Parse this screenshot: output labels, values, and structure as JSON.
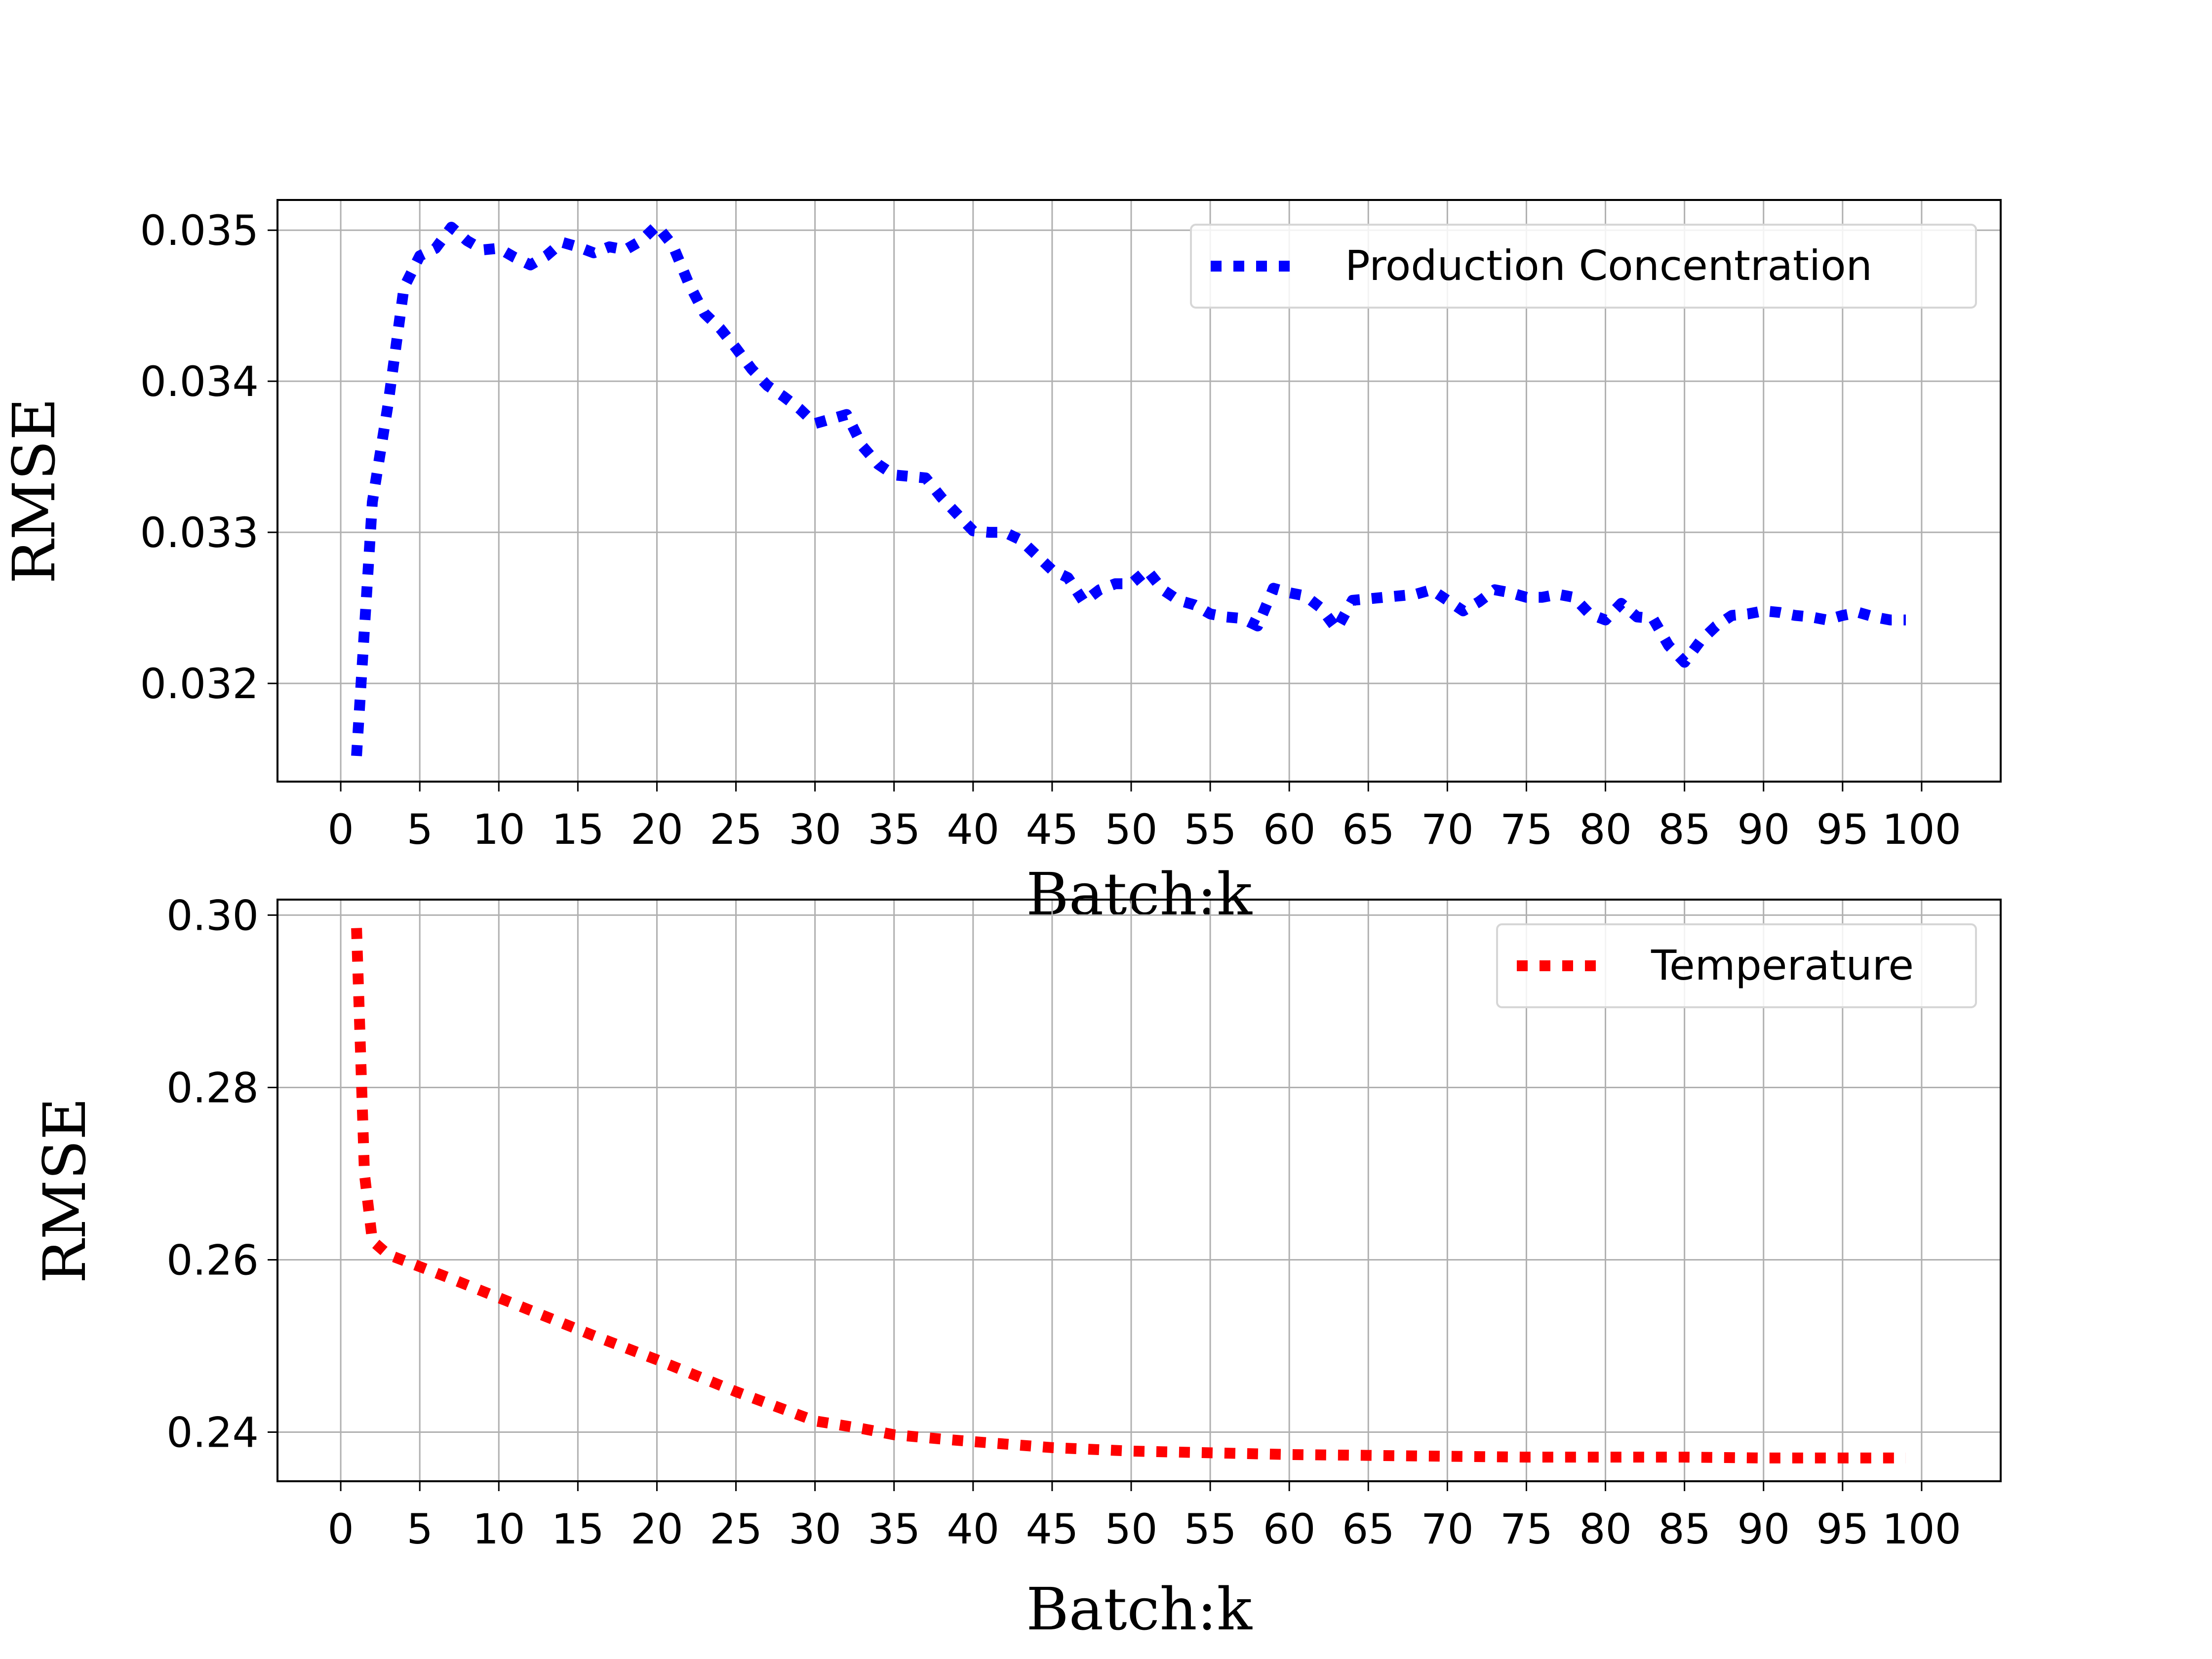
{
  "chart_data": [
    {
      "type": "line",
      "title": "",
      "xlabel": "Batch:k",
      "ylabel": "RMSE",
      "xlim": [
        -4,
        105
      ],
      "ylim": [
        0.03135,
        0.0352
      ],
      "xticks": [
        0,
        5,
        10,
        15,
        20,
        25,
        30,
        35,
        40,
        45,
        50,
        55,
        60,
        65,
        70,
        75,
        80,
        85,
        90,
        95,
        100
      ],
      "xtick_labels": [
        "0",
        "5",
        "10",
        "15",
        "20",
        "25",
        "30",
        "35",
        "40",
        "45",
        "50",
        "55",
        "60",
        "65",
        "70",
        "75",
        "80",
        "85",
        "90",
        "95",
        "100"
      ],
      "yticks": [
        0.032,
        0.033,
        0.034,
        0.035
      ],
      "ytick_labels": [
        "0.032",
        "0.033",
        "0.034",
        "0.035"
      ],
      "grid": true,
      "legend_position": "top-right",
      "series": [
        {
          "name": "Production Concentration",
          "color": "#0000ff",
          "linestyle": "dotted",
          "x": [
            1,
            2,
            3,
            4,
            5,
            6,
            7,
            8,
            9,
            10,
            11,
            12,
            13,
            14,
            15,
            16,
            17,
            18,
            19,
            20,
            21,
            22,
            23,
            24,
            25,
            26,
            27,
            28,
            29,
            30,
            31,
            32,
            33,
            34,
            35,
            36,
            37,
            38,
            39,
            40,
            41,
            42,
            43,
            44,
            45,
            46,
            47,
            48,
            49,
            50,
            51,
            52,
            53,
            54,
            55,
            56,
            57,
            58,
            59,
            60,
            61,
            62,
            63,
            64,
            65,
            66,
            67,
            68,
            69,
            70,
            71,
            72,
            73,
            74,
            75,
            76,
            77,
            78,
            79,
            80,
            81,
            82,
            83,
            84,
            85,
            86,
            87,
            88,
            89,
            90,
            91,
            92,
            93,
            94,
            95,
            96,
            97,
            98,
            99
          ],
          "y": [
            0.03152,
            0.0332,
            0.03385,
            0.03462,
            0.03483,
            0.03488,
            0.03502,
            0.03493,
            0.03487,
            0.03488,
            0.03482,
            0.03477,
            0.03483,
            0.03492,
            0.03489,
            0.03485,
            0.03489,
            0.03487,
            0.03493,
            0.03503,
            0.0349,
            0.03465,
            0.03445,
            0.03435,
            0.03422,
            0.03408,
            0.03397,
            0.0339,
            0.03382,
            0.03372,
            0.03375,
            0.03378,
            0.03357,
            0.03345,
            0.03338,
            0.03337,
            0.03336,
            0.03323,
            0.03312,
            0.03301,
            0.033,
            0.033,
            0.03295,
            0.03285,
            0.03275,
            0.0327,
            0.03254,
            0.03262,
            0.03266,
            0.03266,
            0.03275,
            0.03262,
            0.03255,
            0.03252,
            0.03246,
            0.03244,
            0.03243,
            0.03238,
            0.03263,
            0.0326,
            0.03258,
            0.0325,
            0.03236,
            0.03255,
            0.03256,
            0.03257,
            0.03258,
            0.03259,
            0.03262,
            0.03255,
            0.03248,
            0.03254,
            0.03262,
            0.0326,
            0.03257,
            0.03257,
            0.03259,
            0.03257,
            0.03246,
            0.03242,
            0.03253,
            0.03244,
            0.03243,
            0.03225,
            0.03214,
            0.03228,
            0.03238,
            0.03245,
            0.03246,
            0.03248,
            0.03247,
            0.03245,
            0.03244,
            0.03242,
            0.03245,
            0.03247,
            0.03244,
            0.03242,
            0.03242
          ]
        }
      ]
    },
    {
      "type": "line",
      "title": "",
      "xlabel": "Batch:k",
      "ylabel": "RMSE",
      "xlim": [
        -4,
        105
      ],
      "ylim": [
        0.2343,
        0.3018
      ],
      "xticks": [
        0,
        5,
        10,
        15,
        20,
        25,
        30,
        35,
        40,
        45,
        50,
        55,
        60,
        65,
        70,
        75,
        80,
        85,
        90,
        95,
        100
      ],
      "xtick_labels": [
        "0",
        "5",
        "10",
        "15",
        "20",
        "25",
        "30",
        "35",
        "40",
        "45",
        "50",
        "55",
        "60",
        "65",
        "70",
        "75",
        "80",
        "85",
        "90",
        "95",
        "100"
      ],
      "yticks": [
        0.24,
        0.26,
        0.28,
        0.3
      ],
      "ytick_labels": [
        "0.24",
        "0.26",
        "0.28",
        "0.30"
      ],
      "grid": true,
      "legend_position": "top-right",
      "series": [
        {
          "name": "Temperature",
          "color": "#ff0000",
          "linestyle": "dotted",
          "x": [
            1,
            1.5,
            2,
            3,
            5,
            7,
            10,
            13,
            16,
            20,
            25,
            30,
            33,
            35,
            38,
            40,
            45,
            50,
            55,
            60,
            65,
            70,
            75,
            80,
            85,
            90,
            95,
            99
          ],
          "y": [
            0.2985,
            0.27,
            0.2622,
            0.2606,
            0.2592,
            0.2578,
            0.2556,
            0.2534,
            0.2512,
            0.2484,
            0.2447,
            0.2413,
            0.2404,
            0.2397,
            0.2392,
            0.2389,
            0.2382,
            0.2378,
            0.2376,
            0.2374,
            0.2373,
            0.2372,
            0.2371,
            0.2371,
            0.2371,
            0.237,
            0.237,
            0.237
          ]
        }
      ]
    }
  ]
}
